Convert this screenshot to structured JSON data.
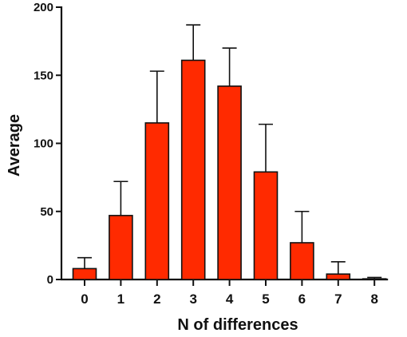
{
  "chart_data": {
    "type": "bar",
    "title": "",
    "xlabel": "N of differences",
    "ylabel": "Average",
    "categories": [
      "0",
      "1",
      "2",
      "3",
      "4",
      "5",
      "6",
      "7",
      "8"
    ],
    "values": [
      8,
      47,
      115,
      161,
      142,
      79,
      27,
      4,
      0.5
    ],
    "error_upper": [
      16,
      72,
      153,
      187,
      170,
      114,
      50,
      13,
      1.5
    ],
    "ylim": [
      0,
      200
    ],
    "yticks": [
      "0",
      "50",
      "100",
      "150",
      "200"
    ],
    "grid": false,
    "legend": "none",
    "bar_color": "#ff2a00"
  }
}
